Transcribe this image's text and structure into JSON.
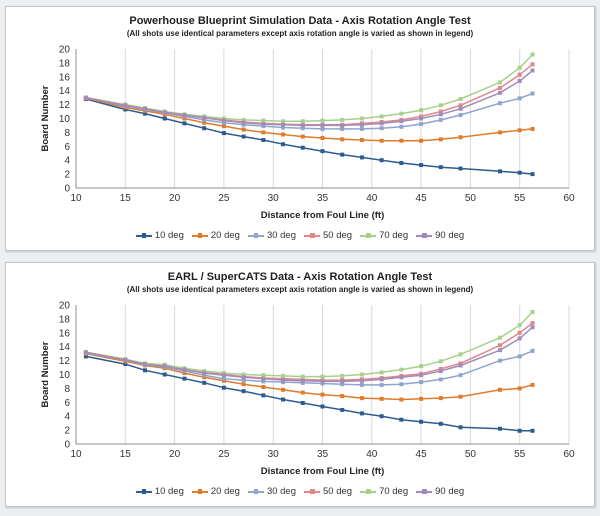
{
  "chart_data": [
    {
      "type": "line",
      "title": "Powerhouse Blueprint Simulation Data - Axis Rotation Angle Test",
      "subtitle": "(All shots use identical parameters except axis rotation angle is varied as shown in legend)",
      "xlabel": "Distance from Foul Line (ft)",
      "ylabel": "Board Number",
      "xlim": [
        10,
        60
      ],
      "ylim": [
        0,
        20
      ],
      "x_ticks": [
        10,
        15,
        20,
        25,
        30,
        35,
        40,
        45,
        50,
        55,
        60
      ],
      "y_ticks": [
        0,
        2,
        4,
        6,
        8,
        10,
        12,
        14,
        16,
        18,
        20
      ],
      "grid": "vertical",
      "legend": "bottom",
      "x": [
        11,
        15,
        17,
        19,
        21,
        23,
        25,
        27,
        29,
        31,
        33,
        35,
        37,
        39,
        41,
        43,
        45,
        47,
        49,
        53,
        55,
        56.3
      ],
      "series": [
        {
          "name": "10 deg",
          "color": "#2e5b8f",
          "values": [
            12.8,
            11.3,
            10.7,
            10.0,
            9.3,
            8.6,
            7.9,
            7.4,
            6.9,
            6.3,
            5.8,
            5.3,
            4.8,
            4.4,
            4.0,
            3.6,
            3.3,
            3.0,
            2.8,
            2.4,
            2.2,
            2.0
          ]
        },
        {
          "name": "20 deg",
          "color": "#e07b2b",
          "values": [
            12.9,
            11.6,
            11.1,
            10.6,
            10.0,
            9.4,
            8.9,
            8.4,
            8.0,
            7.7,
            7.4,
            7.2,
            7.0,
            6.9,
            6.8,
            6.8,
            6.8,
            7.0,
            7.3,
            8.0,
            8.3,
            8.5
          ]
        },
        {
          "name": "30 deg",
          "color": "#8ea5cc",
          "values": [
            13.0,
            11.8,
            11.3,
            10.8,
            10.3,
            9.8,
            9.4,
            9.1,
            8.9,
            8.7,
            8.6,
            8.5,
            8.5,
            8.5,
            8.6,
            8.8,
            9.2,
            9.8,
            10.5,
            12.2,
            12.9,
            13.6
          ]
        },
        {
          "name": "50 deg",
          "color": "#e0878a",
          "values": [
            13.0,
            11.9,
            11.4,
            10.9,
            10.5,
            10.1,
            9.8,
            9.5,
            9.3,
            9.2,
            9.1,
            9.1,
            9.1,
            9.3,
            9.5,
            9.8,
            10.3,
            11.0,
            11.9,
            14.4,
            16.3,
            17.8
          ]
        },
        {
          "name": "70 deg",
          "color": "#a8d08d",
          "values": [
            13.0,
            12.0,
            11.5,
            11.0,
            10.6,
            10.3,
            10.0,
            9.8,
            9.7,
            9.6,
            9.6,
            9.7,
            9.8,
            10.0,
            10.3,
            10.7,
            11.2,
            11.9,
            12.8,
            15.2,
            17.3,
            19.2
          ]
        },
        {
          "name": "90 deg",
          "color": "#a38bb8",
          "values": [
            13.0,
            11.9,
            11.4,
            10.9,
            10.5,
            10.1,
            9.7,
            9.4,
            9.2,
            9.1,
            9.0,
            9.0,
            9.0,
            9.1,
            9.3,
            9.6,
            10.0,
            10.6,
            11.4,
            13.7,
            15.4,
            16.9
          ]
        }
      ]
    },
    {
      "type": "line",
      "title": "EARL / SuperCATS Data - Axis Rotation Angle Test",
      "subtitle": "(All shots use identical parameters except axis rotation angle is varied as shown in legend)",
      "xlabel": "Distance from Foul Line (ft)",
      "ylabel": "Board Number",
      "xlim": [
        10,
        60
      ],
      "ylim": [
        0,
        20
      ],
      "x_ticks": [
        10,
        15,
        20,
        25,
        30,
        35,
        40,
        45,
        50,
        55,
        60
      ],
      "y_ticks": [
        0,
        2,
        4,
        6,
        8,
        10,
        12,
        14,
        16,
        18,
        20
      ],
      "grid": "vertical",
      "legend": "bottom",
      "x": [
        11,
        15,
        17,
        19,
        21,
        23,
        25,
        27,
        29,
        31,
        33,
        35,
        37,
        39,
        41,
        43,
        45,
        47,
        49,
        53,
        55,
        56.3
      ],
      "series": [
        {
          "name": "10 deg",
          "color": "#2e5b8f",
          "values": [
            12.6,
            11.5,
            10.6,
            10.0,
            9.4,
            8.8,
            8.1,
            7.6,
            7.0,
            6.4,
            5.9,
            5.4,
            4.9,
            4.4,
            4.0,
            3.5,
            3.2,
            2.9,
            2.4,
            2.2,
            1.9,
            1.9
          ]
        },
        {
          "name": "20 deg",
          "color": "#e07b2b",
          "values": [
            13.0,
            11.9,
            11.3,
            10.9,
            10.2,
            9.6,
            9.1,
            8.6,
            8.2,
            7.8,
            7.4,
            7.1,
            6.9,
            6.6,
            6.5,
            6.4,
            6.5,
            6.6,
            6.8,
            7.8,
            8.0,
            8.5
          ]
        },
        {
          "name": "30 deg",
          "color": "#8ea5cc",
          "values": [
            13.1,
            12.1,
            11.4,
            11.1,
            10.5,
            9.9,
            9.4,
            9.2,
            9.0,
            8.9,
            8.8,
            8.7,
            8.6,
            8.5,
            8.5,
            8.6,
            8.9,
            9.3,
            9.9,
            12.0,
            12.6,
            13.4
          ]
        },
        {
          "name": "50 deg",
          "color": "#e0878a",
          "values": [
            13.2,
            12.2,
            11.5,
            11.3,
            10.7,
            10.3,
            10.0,
            9.7,
            9.5,
            9.4,
            9.3,
            9.2,
            9.2,
            9.3,
            9.5,
            9.8,
            10.1,
            10.8,
            11.6,
            14.2,
            16.0,
            17.4
          ]
        },
        {
          "name": "70 deg",
          "color": "#a8d08d",
          "values": [
            13.2,
            12.2,
            11.6,
            11.4,
            10.9,
            10.5,
            10.2,
            10.0,
            9.9,
            9.8,
            9.7,
            9.7,
            9.8,
            10.0,
            10.3,
            10.7,
            11.2,
            11.9,
            12.9,
            15.3,
            17.1,
            19.0
          ]
        },
        {
          "name": "90 deg",
          "color": "#a38bb8",
          "values": [
            13.2,
            12.1,
            11.5,
            11.2,
            10.7,
            10.2,
            9.9,
            9.6,
            9.4,
            9.2,
            9.1,
            9.0,
            9.0,
            9.1,
            9.3,
            9.6,
            9.9,
            10.5,
            11.3,
            13.5,
            15.2,
            16.8
          ]
        }
      ]
    }
  ]
}
